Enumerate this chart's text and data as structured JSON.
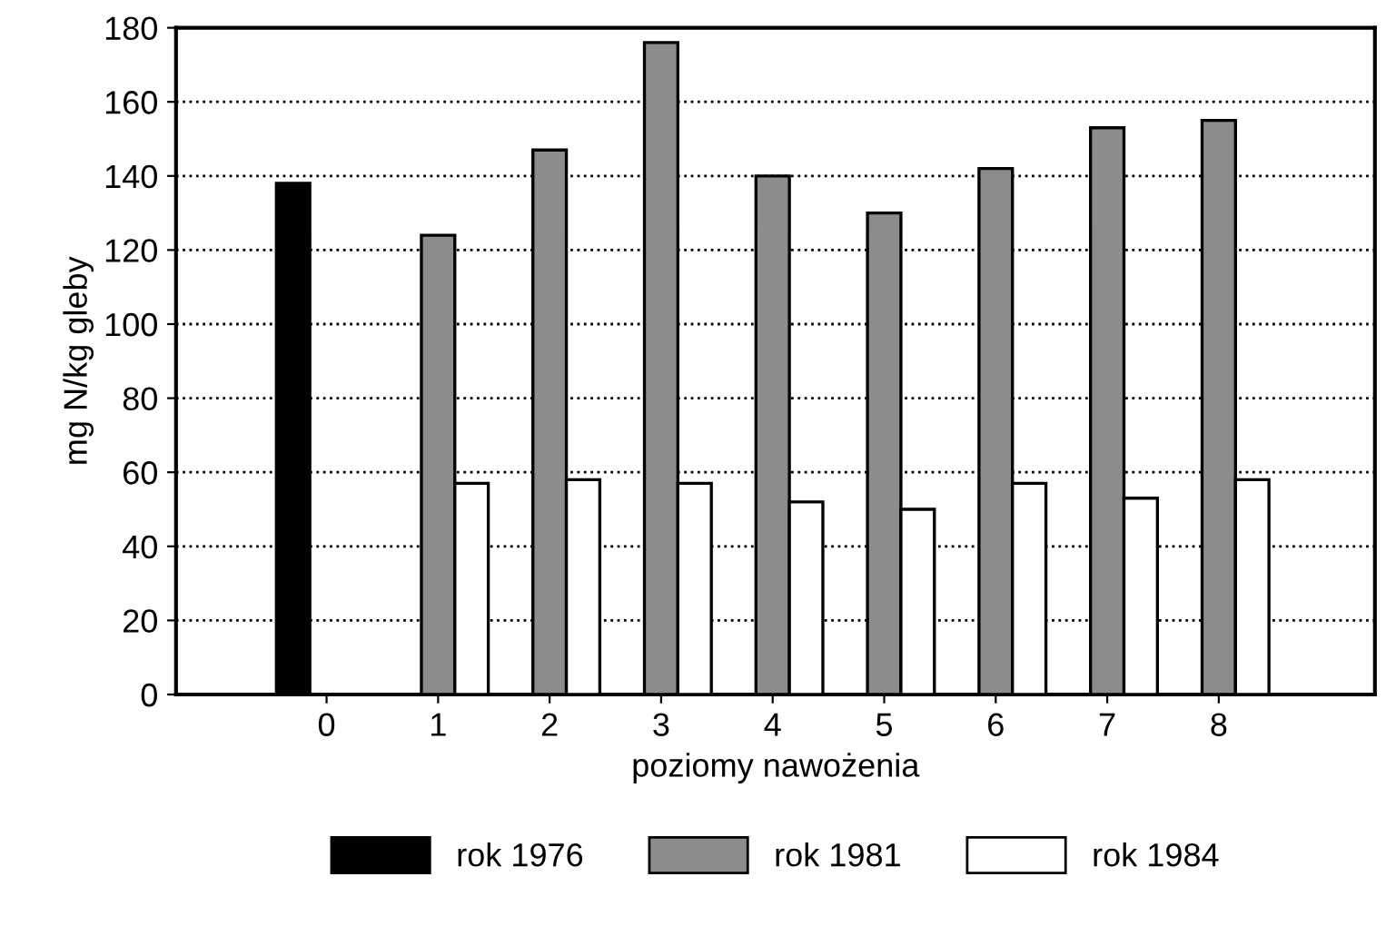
{
  "chart_data": {
    "type": "bar",
    "xlabel": "poziomy nawożenia",
    "ylabel": "mg N/kg gleby",
    "categories": [
      "0",
      "1",
      "2",
      "3",
      "4",
      "5",
      "6",
      "7",
      "8"
    ],
    "series": [
      {
        "name": "rok 1976",
        "color": "#000000",
        "values": [
          138,
          null,
          null,
          null,
          null,
          null,
          null,
          null,
          null
        ]
      },
      {
        "name": "rok 1981",
        "color": "#8c8c8c",
        "values": [
          null,
          124,
          147,
          176,
          140,
          130,
          142,
          153,
          155
        ]
      },
      {
        "name": "rok 1984",
        "color": "#ffffff",
        "values": [
          null,
          57,
          58,
          57,
          52,
          50,
          57,
          53,
          58
        ]
      }
    ],
    "ylim": [
      0,
      180
    ],
    "yticks": [
      0,
      20,
      40,
      60,
      80,
      100,
      120,
      140,
      160,
      180
    ],
    "grid": "y",
    "legend": "bottom"
  }
}
